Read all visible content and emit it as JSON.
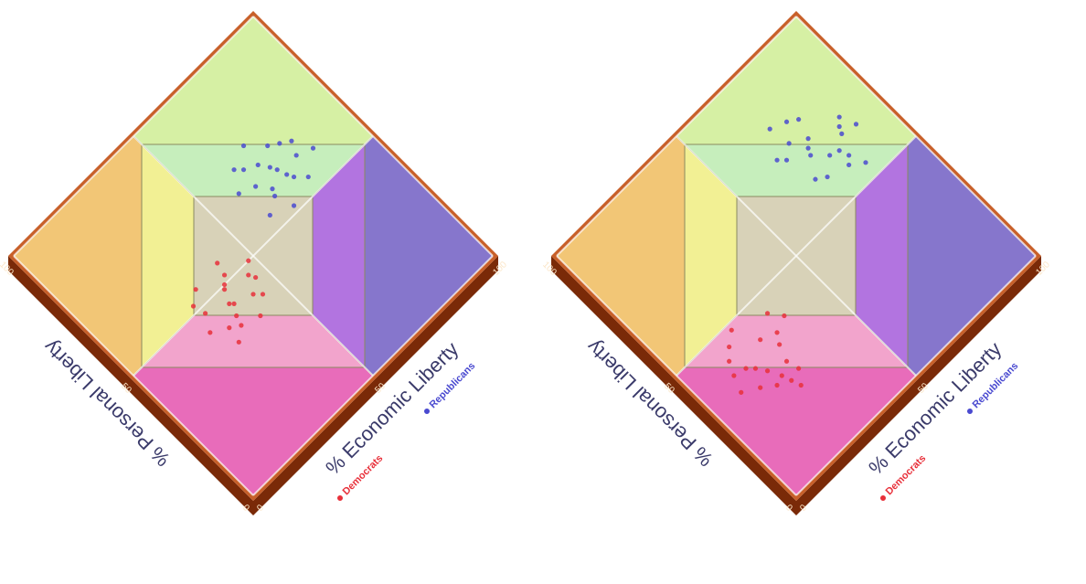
{
  "chart_data": [
    {
      "type": "scatter",
      "xlabel": "% Economic Liberty",
      "ylabel": "% Personal Liberty",
      "xlim": [
        0,
        100
      ],
      "ylim": [
        0,
        100
      ],
      "xticks": [
        0,
        50,
        100
      ],
      "yticks": [
        0,
        50,
        100
      ],
      "grid": true,
      "series": [
        {
          "name": "Democrats",
          "color": "#e8303a",
          "x": [
            30,
            35,
            38,
            42,
            28,
            33,
            45,
            40,
            36,
            25,
            48,
            31,
            39,
            44,
            27,
            37,
            41,
            34,
            29,
            46
          ],
          "values": [
            40,
            45,
            50,
            42,
            48,
            38,
            47,
            52,
            44,
            43,
            50,
            55,
            36,
            40,
            52,
            49,
            56,
            41,
            35,
            45
          ]
        },
        {
          "name": "Republicans",
          "color": "#4a4ad0",
          "x": [
            62,
            68,
            72,
            75,
            80,
            66,
            70,
            78,
            64,
            73,
            85,
            60,
            69,
            76,
            82,
            71,
            65,
            74,
            67,
            79
          ],
          "values": [
            55,
            60,
            65,
            58,
            62,
            70,
            68,
            55,
            72,
            63,
            60,
            66,
            52,
            70,
            66,
            75,
            64,
            60,
            58,
            68
          ]
        }
      ]
    },
    {
      "type": "scatter",
      "xlabel": "% Economic Liberty",
      "ylabel": "% Personal Liberty",
      "xlim": [
        0,
        100
      ],
      "ylim": [
        0,
        100
      ],
      "xticks": [
        0,
        50,
        100
      ],
      "yticks": [
        0,
        50,
        100
      ],
      "grid": true,
      "series": [
        {
          "name": "Democrats",
          "color": "#e8303a",
          "x": [
            15,
            18,
            22,
            25,
            12,
            20,
            28,
            17,
            23,
            30,
            14,
            26,
            19,
            21,
            35,
            10,
            24,
            16,
            32,
            27
          ],
          "values": [
            30,
            35,
            28,
            40,
            38,
            32,
            35,
            45,
            25,
            38,
            42,
            30,
            27,
            48,
            40,
            33,
            22,
            37,
            44,
            26
          ]
        },
        {
          "name": "Republicans",
          "color": "#4a4ad0",
          "x": [
            70,
            75,
            80,
            85,
            72,
            78,
            88,
            68,
            82,
            76,
            90,
            74,
            66,
            84,
            79,
            73,
            86,
            71,
            77,
            81
          ],
          "values": [
            62,
            70,
            58,
            66,
            75,
            64,
            70,
            72,
            60,
            80,
            65,
            68,
            74,
            55,
            78,
            60,
            68,
            82,
            72,
            63
          ]
        }
      ]
    }
  ]
}
